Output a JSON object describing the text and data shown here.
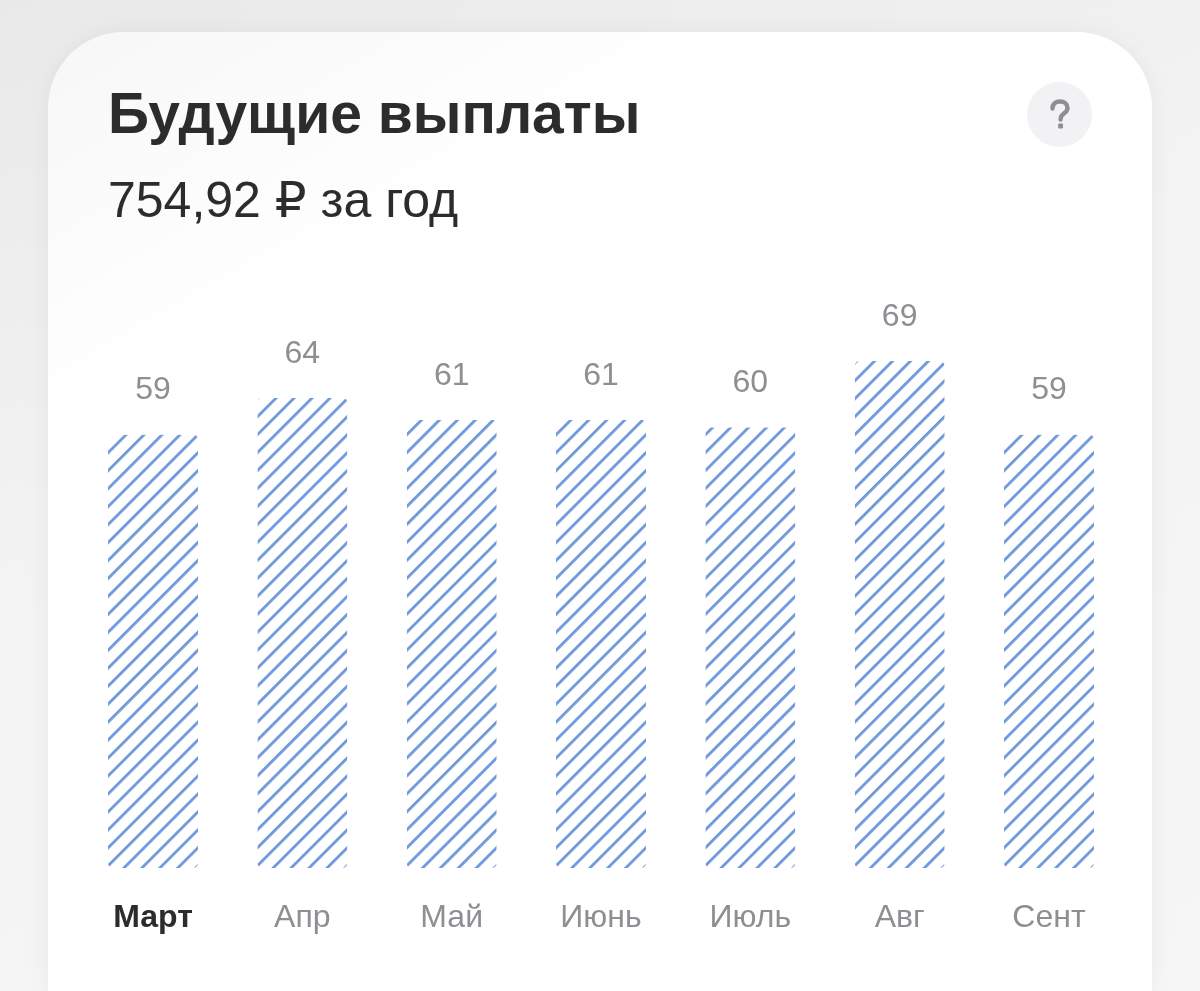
{
  "chart_data": {
    "type": "bar",
    "title": "Будущие выплаты",
    "subtitle": "754,92 ₽ за год",
    "categories": [
      "Март",
      "Апр",
      "Май",
      "Июнь",
      "Июль",
      "Авг",
      "Сент"
    ],
    "values": [
      59,
      64,
      61,
      61,
      60,
      69,
      59
    ],
    "color": "#6f98dc",
    "data_labels": true,
    "tick_labels": "x"
  }
}
